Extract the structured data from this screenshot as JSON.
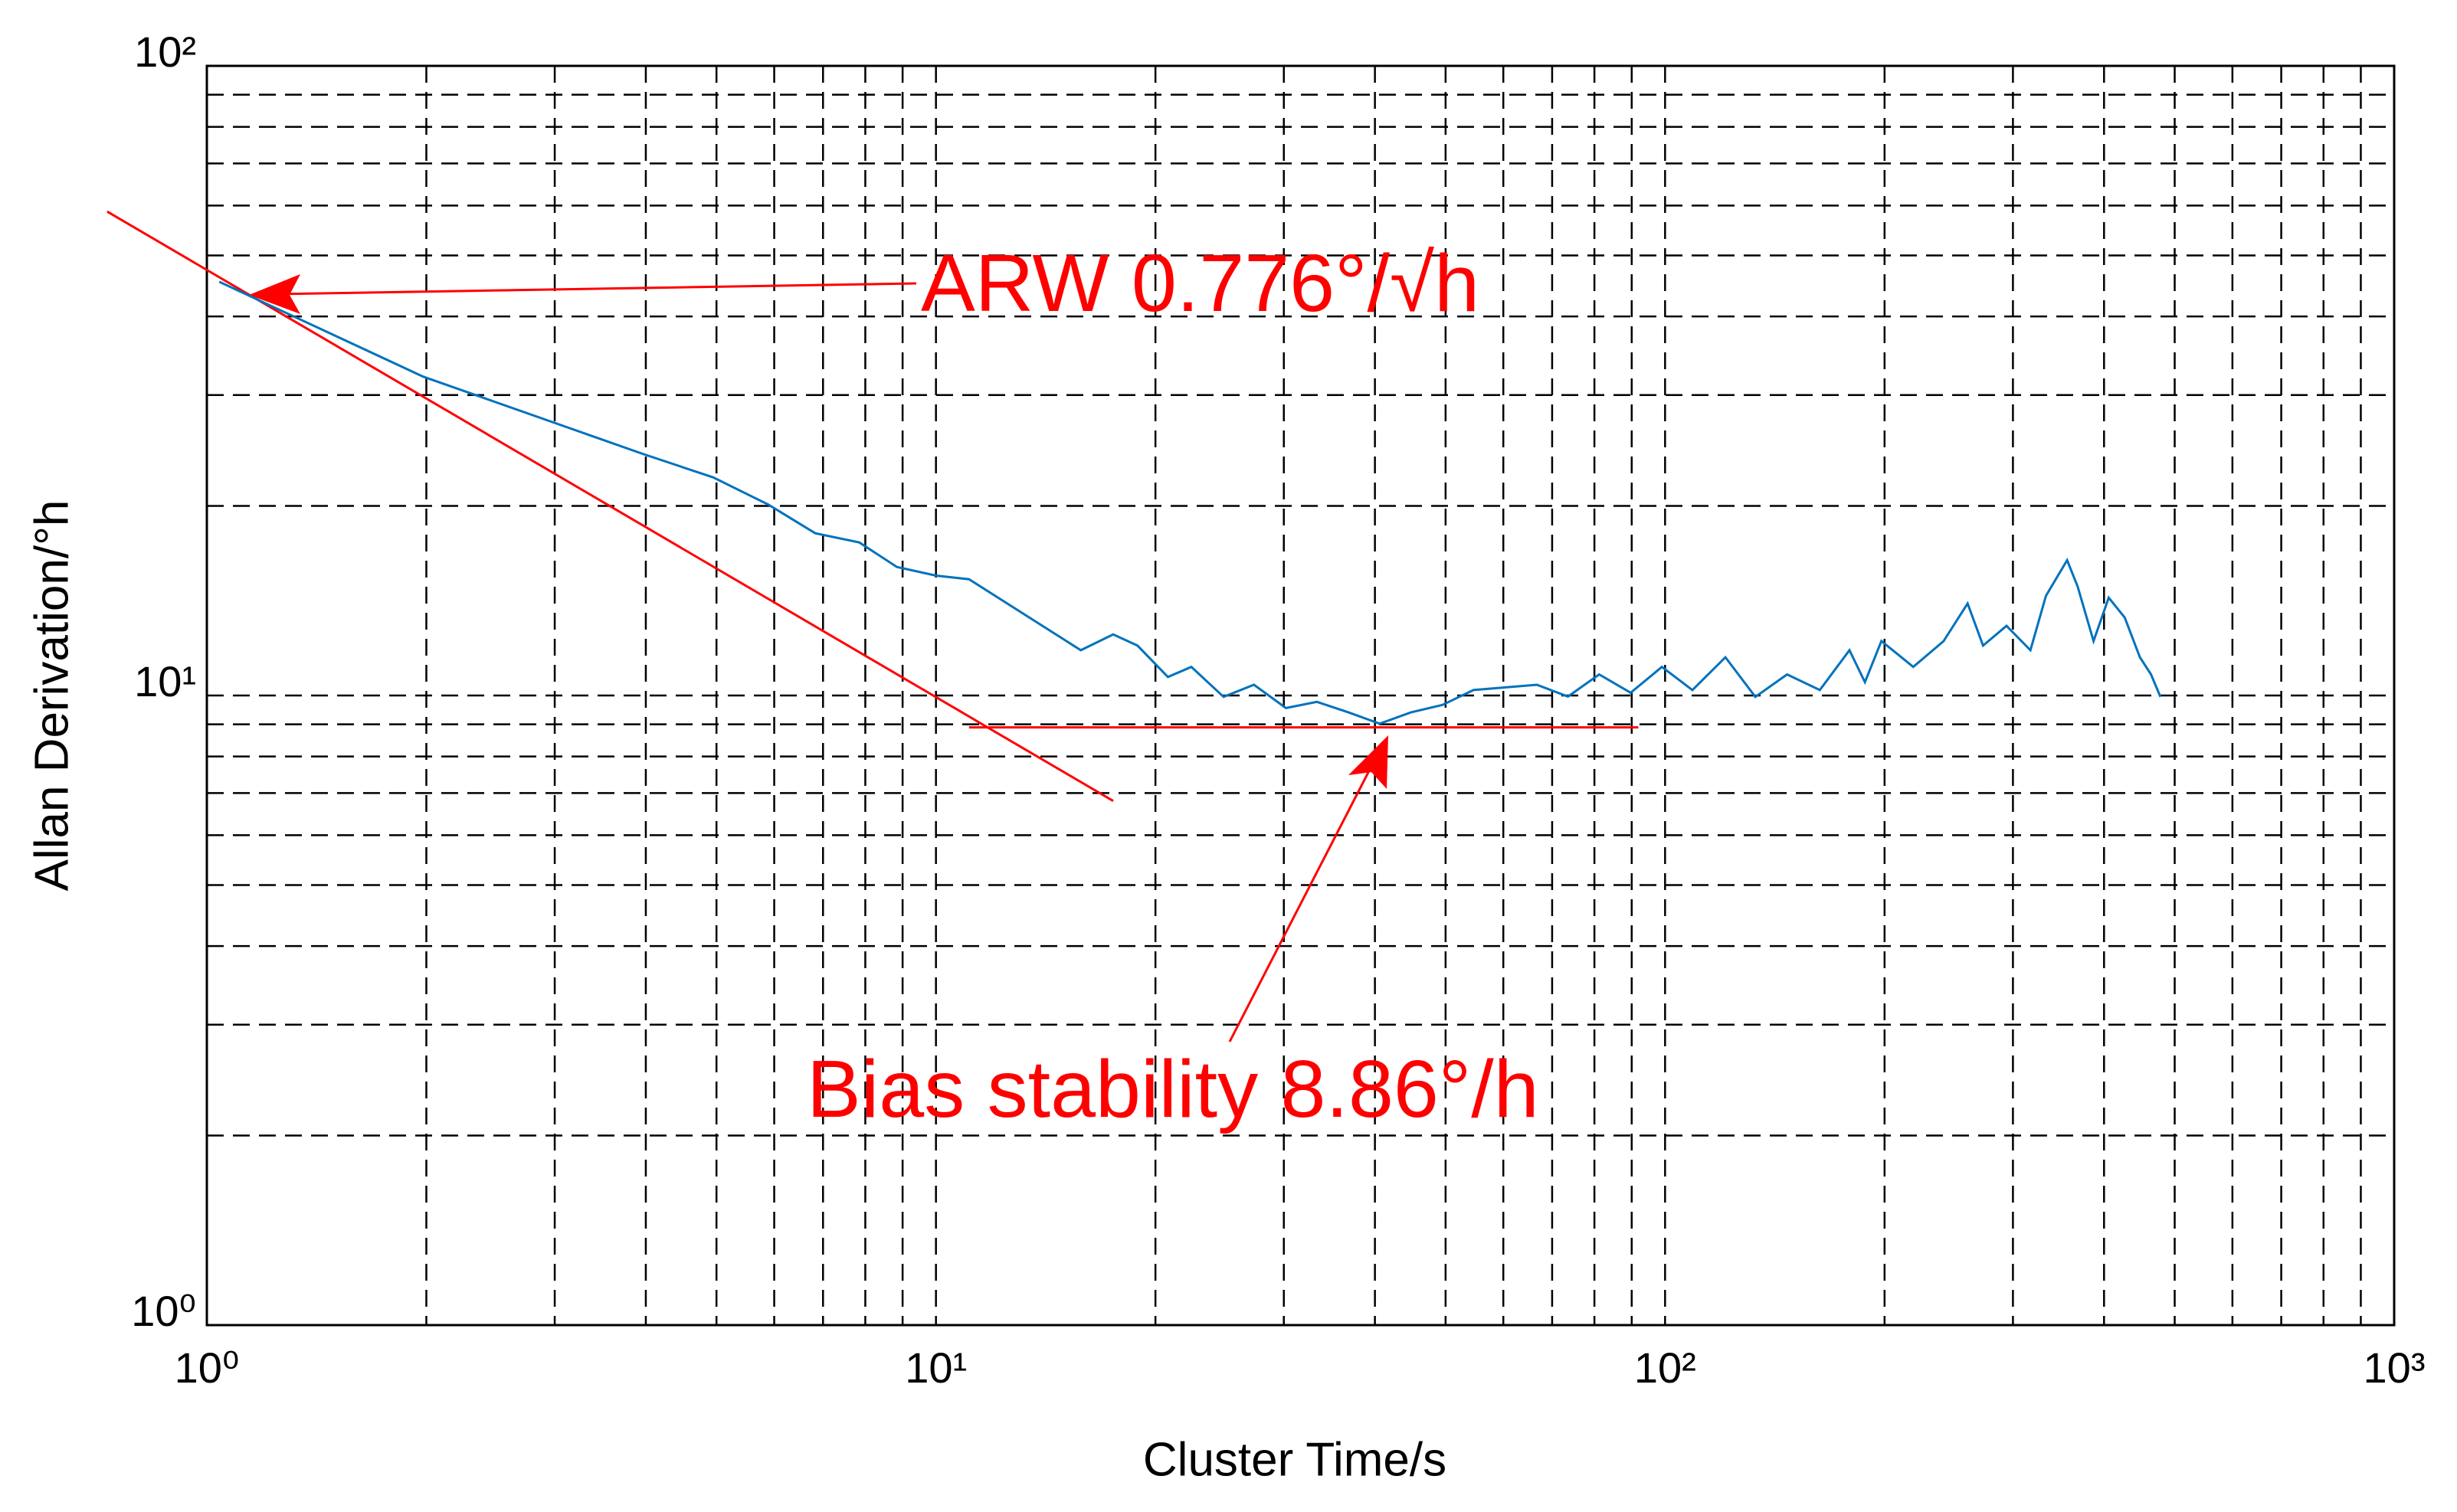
{
  "chart_data": {
    "type": "line",
    "xlabel": "Cluster Time/s",
    "ylabel": "Allan Derivation/°h",
    "xscale": "log",
    "yscale": "log",
    "grid": true,
    "xlim": [
      1,
      1000
    ],
    "ylim": [
      1,
      100
    ],
    "xticks": [
      {
        "value": 1,
        "label": "10⁰"
      },
      {
        "value": 10,
        "label": "10¹"
      },
      {
        "value": 100,
        "label": "10²"
      },
      {
        "value": 1000,
        "label": "10³"
      }
    ],
    "yticks": [
      {
        "value": 1,
        "label": "10⁰"
      },
      {
        "value": 10,
        "label": "10¹"
      },
      {
        "value": 100,
        "label": "10²"
      }
    ],
    "xminorticks": [
      2,
      3,
      4,
      5,
      6,
      7,
      8,
      9,
      20,
      30,
      40,
      50,
      60,
      70,
      80,
      90,
      200,
      300,
      400,
      500,
      600,
      700,
      800,
      900
    ],
    "yminorticks": [
      2,
      3,
      4,
      5,
      6,
      7,
      8,
      9,
      20,
      30,
      40,
      50,
      60,
      70,
      80,
      90
    ],
    "series": [
      {
        "color": "#0072bd",
        "x": [
          1.04,
          1.98,
          3.96,
          4.95,
          5.89,
          6.83,
          7.85,
          8.84,
          10,
          11.1,
          15.1,
          15.8,
          17.5,
          18.9,
          20.8,
          22.4,
          24.8,
          27.3,
          30.2,
          33.3,
          36.8,
          40.6,
          44.8,
          49.5,
          54.6,
          66.7,
          73.6,
          81.2,
          89.7,
          99,
          109,
          121,
          133,
          147,
          163,
          179,
          188,
          198,
          219,
          241,
          260,
          273,
          294,
          317,
          333,
          356,
          368,
          387,
          406,
          427,
          448,
          464,
          478
        ],
        "values": [
          45.4,
          32.1,
          24.2,
          22.2,
          20.1,
          18.1,
          17.5,
          16.0,
          15.5,
          15.3,
          12.2,
          11.8,
          12.5,
          12.0,
          10.7,
          11.1,
          9.95,
          10.4,
          9.55,
          9.77,
          9.4,
          9.02,
          9.4,
          9.66,
          10.2,
          10.4,
          9.96,
          10.8,
          10.1,
          11.1,
          10.2,
          11.5,
          9.95,
          10.8,
          10.2,
          11.8,
          10.5,
          12.2,
          11.1,
          12.2,
          14.0,
          12.0,
          12.9,
          11.8,
          14.4,
          16.4,
          14.9,
          12.2,
          14.3,
          13.3,
          11.5,
          10.8,
          9.95
        ]
      }
    ],
    "fit_lines": [
      {
        "color": "#ff0000",
        "x": [
          0.73,
          17.5
        ],
        "values": [
          58.7,
          6.8
        ]
      },
      {
        "color": "#ff0000",
        "x": [
          11.1,
          91.9
        ],
        "values": [
          8.9,
          8.9
        ]
      }
    ],
    "annotations": [
      "ARW 0.776°/√h",
      "Bias stability 8.86°/h"
    ]
  }
}
